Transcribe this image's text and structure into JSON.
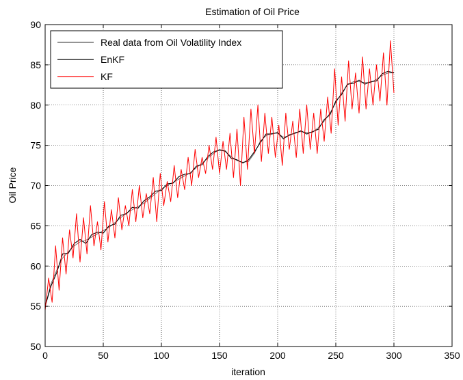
{
  "chart_data": {
    "type": "line",
    "title": "Estimation of Oil Price",
    "xlabel": "iteration",
    "ylabel": "Oil Price",
    "xlim": [
      0,
      350
    ],
    "ylim": [
      50,
      90
    ],
    "xticks": [
      0,
      50,
      100,
      150,
      200,
      250,
      300,
      350
    ],
    "yticks": [
      50,
      55,
      60,
      65,
      70,
      75,
      80,
      85,
      90
    ],
    "grid": true,
    "legend_position": "top-left",
    "colors": {
      "real": "#555555",
      "enkf": "#000000",
      "kf": "#ff0000"
    },
    "series": [
      {
        "name": "Real data from Oil Volatility Index",
        "key": "real",
        "x": [
          0,
          5,
          10,
          15,
          20,
          25,
          30,
          35,
          40,
          45,
          50,
          55,
          60,
          65,
          70,
          75,
          80,
          85,
          90,
          95,
          100,
          105,
          110,
          115,
          120,
          125,
          130,
          135,
          140,
          145,
          150,
          155,
          160,
          165,
          170,
          175,
          180,
          185,
          190,
          195,
          200,
          205,
          210,
          215,
          220,
          225,
          230,
          235,
          240,
          245,
          250,
          255,
          260,
          265,
          270,
          275,
          280,
          285,
          290,
          295,
          300
        ],
        "values": [
          55.0,
          57.8,
          59.5,
          61.0,
          61.8,
          62.5,
          63.0,
          63.2,
          63.6,
          64.0,
          64.4,
          64.8,
          65.4,
          66.0,
          66.6,
          67.0,
          67.4,
          67.8,
          68.4,
          69.0,
          69.6,
          70.0,
          70.4,
          70.8,
          71.2,
          71.6,
          72.2,
          72.8,
          73.4,
          74.0,
          74.5,
          74.2,
          73.6,
          73.1,
          72.9,
          73.0,
          74.0,
          75.5,
          76.2,
          76.5,
          76.5,
          76.0,
          76.2,
          76.6,
          76.7,
          76.6,
          76.6,
          77.2,
          78.0,
          79.0,
          80.3,
          81.5,
          82.5,
          82.9,
          82.9,
          82.8,
          82.8,
          83.2,
          83.7,
          84.0,
          84.0
        ]
      },
      {
        "name": "EnKF",
        "key": "enkf",
        "x": [
          0,
          5,
          10,
          15,
          20,
          25,
          30,
          35,
          40,
          45,
          50,
          55,
          60,
          65,
          70,
          75,
          80,
          85,
          90,
          95,
          100,
          105,
          110,
          115,
          120,
          125,
          130,
          135,
          140,
          145,
          150,
          155,
          160,
          165,
          170,
          175,
          180,
          185,
          190,
          195,
          200,
          205,
          210,
          215,
          220,
          225,
          230,
          235,
          240,
          245,
          250,
          255,
          260,
          265,
          270,
          275,
          280,
          285,
          290,
          295,
          300
        ],
        "values": [
          55.0,
          57.5,
          59.2,
          61.5,
          61.6,
          62.8,
          63.3,
          62.8,
          63.9,
          64.2,
          64.1,
          65.0,
          65.2,
          66.3,
          66.5,
          67.3,
          67.2,
          68.1,
          68.6,
          69.3,
          69.4,
          70.2,
          70.3,
          71.1,
          71.4,
          71.5,
          72.4,
          72.6,
          73.6,
          74.2,
          74.4,
          74.3,
          73.4,
          73.2,
          72.8,
          73.2,
          74.2,
          75.3,
          76.4,
          76.4,
          76.6,
          75.8,
          76.3,
          76.5,
          76.8,
          76.4,
          76.7,
          77.0,
          78.2,
          78.8,
          80.5,
          81.3,
          82.6,
          82.7,
          83.1,
          82.6,
          82.9,
          83.0,
          83.9,
          84.2,
          84.0
        ]
      },
      {
        "name": "KF",
        "key": "kf",
        "x": [
          0,
          3,
          6,
          9,
          12,
          15,
          18,
          21,
          24,
          27,
          30,
          33,
          36,
          39,
          42,
          45,
          48,
          51,
          54,
          57,
          60,
          63,
          66,
          69,
          72,
          75,
          78,
          81,
          84,
          87,
          90,
          93,
          96,
          99,
          102,
          105,
          108,
          111,
          114,
          117,
          120,
          123,
          126,
          129,
          132,
          135,
          138,
          141,
          144,
          147,
          150,
          153,
          156,
          159,
          162,
          165,
          168,
          171,
          174,
          177,
          180,
          183,
          186,
          189,
          192,
          195,
          198,
          201,
          204,
          207,
          210,
          213,
          216,
          219,
          222,
          225,
          228,
          231,
          234,
          237,
          240,
          243,
          246,
          249,
          252,
          255,
          258,
          261,
          264,
          267,
          270,
          273,
          276,
          279,
          282,
          285,
          288,
          291,
          294,
          297,
          300
        ],
        "values": [
          54.5,
          58.5,
          55.5,
          62.5,
          57.0,
          63.5,
          59.0,
          64.5,
          61.0,
          66.5,
          60.5,
          66.0,
          61.5,
          67.5,
          62.5,
          65.5,
          62.0,
          68.0,
          63.0,
          67.0,
          63.5,
          68.5,
          64.5,
          67.5,
          65.0,
          69.5,
          65.5,
          70.0,
          66.0,
          69.0,
          66.5,
          71.0,
          65.5,
          71.5,
          67.5,
          70.5,
          68.0,
          72.5,
          68.5,
          72.0,
          69.5,
          73.5,
          70.0,
          74.5,
          71.0,
          73.5,
          71.5,
          75.0,
          72.0,
          76.0,
          71.5,
          75.5,
          72.0,
          76.5,
          71.0,
          77.0,
          70.0,
          78.5,
          72.0,
          79.5,
          74.0,
          80.0,
          73.0,
          79.0,
          74.0,
          78.5,
          73.5,
          77.5,
          72.5,
          79.0,
          74.5,
          78.0,
          73.5,
          79.5,
          74.0,
          80.0,
          74.5,
          79.0,
          74.0,
          79.5,
          75.5,
          81.0,
          76.5,
          84.5,
          77.5,
          83.5,
          78.0,
          85.5,
          79.5,
          84.0,
          79.0,
          86.0,
          79.5,
          84.5,
          80.0,
          85.0,
          80.5,
          86.5,
          80.0,
          88.0,
          81.5
        ]
      }
    ]
  }
}
